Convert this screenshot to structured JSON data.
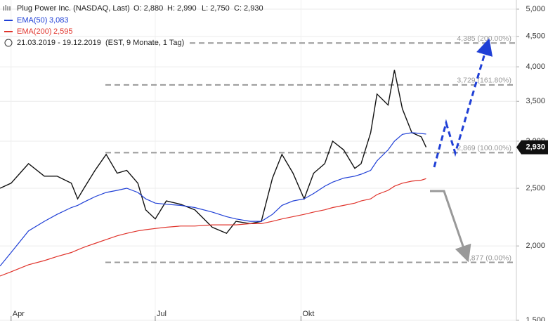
{
  "chart_data": {
    "type": "line",
    "title": "Plug Power Inc. (NASDAQ, Last)",
    "ohlc": [
      "O: 2,880",
      "H: 2,990",
      "L: 2,750",
      "C: 2,930"
    ],
    "period": "21.03.2019 - 19.12.2019",
    "period_note": "(EST, 9 Monate, 1 Tag)",
    "x": [
      "2019-03-25",
      "2019-04-01",
      "2019-04-12",
      "2019-04-22",
      "2019-04-30",
      "2019-05-09",
      "2019-05-13",
      "2019-05-17",
      "2019-05-24",
      "2019-05-31",
      "2019-06-07",
      "2019-06-13",
      "2019-06-20",
      "2019-06-25",
      "2019-07-01",
      "2019-07-08",
      "2019-07-17",
      "2019-07-26",
      "2019-08-06",
      "2019-08-15",
      "2019-08-21",
      "2019-08-30",
      "2019-09-06",
      "2019-09-13",
      "2019-09-19",
      "2019-09-26",
      "2019-10-03",
      "2019-10-09",
      "2019-10-16",
      "2019-10-21",
      "2019-10-28",
      "2019-11-04",
      "2019-11-08",
      "2019-11-14",
      "2019-11-18",
      "2019-11-25",
      "2019-11-29",
      "2019-12-04",
      "2019-12-10",
      "2019-12-16",
      "2019-12-19"
    ],
    "series": [
      {
        "name": "Plug Power",
        "color": "#111111",
        "values": [
          2.5,
          2.55,
          2.75,
          2.62,
          2.62,
          2.55,
          2.4,
          2.5,
          2.68,
          2.85,
          2.65,
          2.68,
          2.55,
          2.3,
          2.22,
          2.38,
          2.35,
          2.3,
          2.15,
          2.1,
          2.2,
          2.18,
          2.2,
          2.6,
          2.85,
          2.65,
          2.4,
          2.65,
          2.75,
          3.0,
          2.9,
          2.7,
          2.75,
          3.1,
          3.6,
          3.45,
          3.95,
          3.4,
          3.1,
          3.05,
          2.93
        ]
      },
      {
        "name": "EMA(50)",
        "color": "#1f3fd6",
        "last_label": "3,083",
        "values": [
          1.85,
          1.95,
          2.12,
          2.2,
          2.26,
          2.32,
          2.34,
          2.37,
          2.42,
          2.46,
          2.48,
          2.5,
          2.46,
          2.4,
          2.36,
          2.35,
          2.34,
          2.32,
          2.28,
          2.24,
          2.22,
          2.2,
          2.2,
          2.26,
          2.34,
          2.38,
          2.4,
          2.45,
          2.52,
          2.56,
          2.6,
          2.62,
          2.64,
          2.68,
          2.78,
          2.9,
          3.0,
          3.08,
          3.1,
          3.09,
          3.083
        ]
      },
      {
        "name": "EMA(200)",
        "color": "#e0332b",
        "last_label": "2,595",
        "values": [
          1.78,
          1.81,
          1.86,
          1.89,
          1.92,
          1.95,
          1.97,
          1.99,
          2.02,
          2.05,
          2.08,
          2.1,
          2.12,
          2.13,
          2.14,
          2.15,
          2.16,
          2.16,
          2.17,
          2.17,
          2.17,
          2.18,
          2.18,
          2.2,
          2.22,
          2.24,
          2.26,
          2.28,
          2.3,
          2.32,
          2.34,
          2.36,
          2.38,
          2.4,
          2.44,
          2.48,
          2.52,
          2.55,
          2.57,
          2.58,
          2.595
        ]
      }
    ],
    "last_price": {
      "value": 2.93,
      "label": "2,930"
    },
    "levels": [
      {
        "value": 4.385,
        "label": "4,385 (200.00%)"
      },
      {
        "value": 3.729,
        "label": "3,729 (161.80%)"
      },
      {
        "value": 2.869,
        "label": "2,869 (100.00%)"
      },
      {
        "value": 1.877,
        "label": "1,877 (0.00%)"
      }
    ],
    "log_scale": true,
    "grid": true,
    "xlim": [
      "2019-03-25",
      "2020-02-14"
    ],
    "xticks": [
      {
        "value": "2019-04-01",
        "label": "Apr"
      },
      {
        "value": "2019-07-01",
        "label": "Jul"
      },
      {
        "value": "2019-10-01",
        "label": "Okt"
      }
    ],
    "ylim": [
      1.5,
      5.0
    ],
    "yticks": [
      {
        "value": 1.5,
        "label": "1,500"
      },
      {
        "value": 2.0,
        "label": "2,000"
      },
      {
        "value": 2.5,
        "label": "2,500"
      },
      {
        "value": 3.0,
        "label": "3,000"
      },
      {
        "value": 3.5,
        "label": "3,500"
      },
      {
        "value": 4.0,
        "label": "4,000"
      },
      {
        "value": 4.5,
        "label": "4,500"
      },
      {
        "value": 5.0,
        "label": "5,000"
      }
    ]
  }
}
